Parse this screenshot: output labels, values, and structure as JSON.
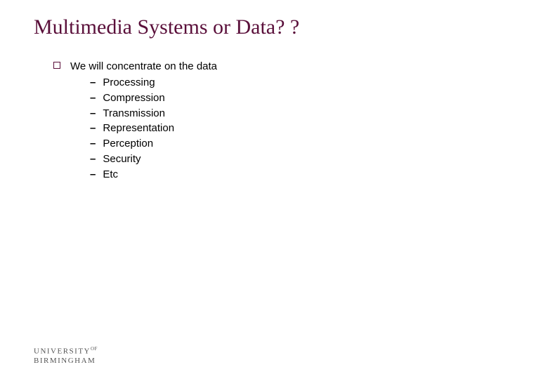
{
  "colors": {
    "title": "#5a0f3a",
    "text": "#000000",
    "bullet_border": "#5a0f3a",
    "background": "#ffffff",
    "logo": "#555555"
  },
  "typography": {
    "title_family": "Times New Roman",
    "title_fontsize": 30,
    "body_family": "Arial",
    "body_fontsize": 15
  },
  "slide": {
    "title": "Multimedia Systems or Data? ?",
    "lead": "We will concentrate on the data",
    "items": [
      "Processing",
      "Compression",
      "Transmission",
      "Representation",
      "Perception",
      "Security",
      "Etc"
    ]
  },
  "footer": {
    "line1_a": "UNIVERSITY",
    "line1_b": "OF",
    "line2": "BIRMINGHAM"
  }
}
